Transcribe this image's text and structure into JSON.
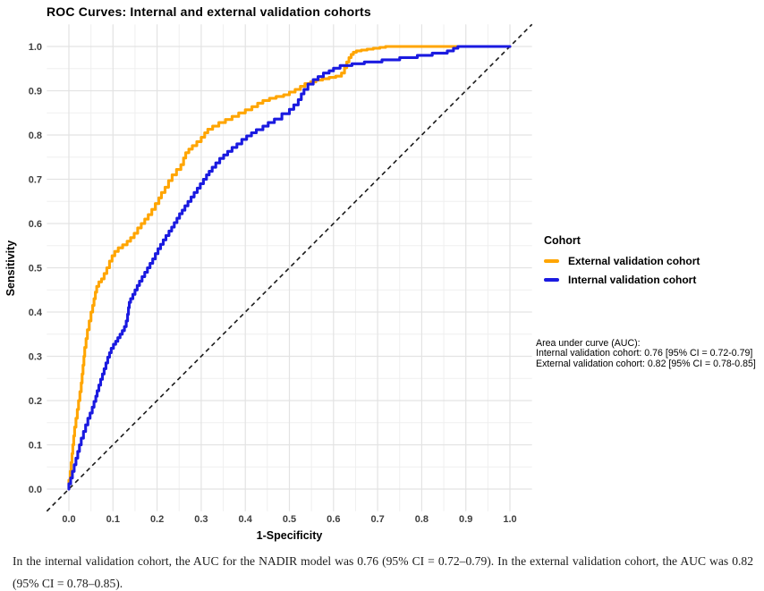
{
  "title": "ROC Curves: Internal and external validation cohorts",
  "legend": {
    "title": "Cohort",
    "items": [
      {
        "label": "External validation cohort",
        "color": "#FFA500"
      },
      {
        "label": "Internal validation cohort",
        "color": "#1A1AE0"
      }
    ]
  },
  "annotation": {
    "lines": [
      "Area under curve (AUC):",
      "Internal validation cohort: 0.76 [95% CI = 0.72-0.79]",
      "External validation cohort: 0.82 [95% CI = 0.78-0.85]"
    ]
  },
  "caption": {
    "text": "In the internal validation cohort, the AUC for the NADIR model was 0.76 (95% CI = 0.72–0.79). In the external validation cohort, the AUC was 0.82 (95% CI = 0.78–0.85)."
  },
  "chart_data": {
    "type": "line",
    "subtype": "roc-step-curves",
    "title": "ROC Curves: Internal and external validation cohorts",
    "xlabel": "1-Specificity",
    "ylabel": "Sensitivity",
    "xlim": [
      -0.05,
      1.05
    ],
    "ylim": [
      -0.05,
      1.05
    ],
    "x_ticks": [
      0.0,
      0.1,
      0.2,
      0.3,
      0.4,
      0.5,
      0.6,
      0.7,
      0.8,
      0.9,
      1.0
    ],
    "y_ticks": [
      0.0,
      0.1,
      0.2,
      0.3,
      0.4,
      0.5,
      0.6,
      0.7,
      0.8,
      0.9,
      1.0
    ],
    "grid": true,
    "grid_major_color": "#E3E3E3",
    "grid_minor_color": "#EFEFEF",
    "legend_position": "right",
    "legend_title": "Cohort",
    "reference_line": {
      "from": [
        0,
        0
      ],
      "to": [
        1,
        1
      ],
      "style": "dashed",
      "color": "#1A1A1A"
    },
    "series": [
      {
        "name": "External validation cohort",
        "color": "#FFA500",
        "auc": "0.82 [95% CI = 0.78-0.85]",
        "points": [
          [
            0.0,
            0.0
          ],
          [
            0.003,
            0.02
          ],
          [
            0.005,
            0.04
          ],
          [
            0.007,
            0.06
          ],
          [
            0.009,
            0.08
          ],
          [
            0.011,
            0.1
          ],
          [
            0.013,
            0.12
          ],
          [
            0.016,
            0.14
          ],
          [
            0.019,
            0.16
          ],
          [
            0.022,
            0.18
          ],
          [
            0.025,
            0.2
          ],
          [
            0.028,
            0.22
          ],
          [
            0.03,
            0.24
          ],
          [
            0.032,
            0.26
          ],
          [
            0.034,
            0.28
          ],
          [
            0.036,
            0.3
          ],
          [
            0.039,
            0.32
          ],
          [
            0.042,
            0.34
          ],
          [
            0.046,
            0.36
          ],
          [
            0.05,
            0.38
          ],
          [
            0.054,
            0.4
          ],
          [
            0.057,
            0.415
          ],
          [
            0.06,
            0.43
          ],
          [
            0.063,
            0.445
          ],
          [
            0.068,
            0.458
          ],
          [
            0.074,
            0.468
          ],
          [
            0.08,
            0.475
          ],
          [
            0.086,
            0.487
          ],
          [
            0.092,
            0.5
          ],
          [
            0.098,
            0.515
          ],
          [
            0.104,
            0.527
          ],
          [
            0.112,
            0.537
          ],
          [
            0.122,
            0.545
          ],
          [
            0.132,
            0.552
          ],
          [
            0.14,
            0.56
          ],
          [
            0.148,
            0.568
          ],
          [
            0.156,
            0.578
          ],
          [
            0.164,
            0.59
          ],
          [
            0.172,
            0.6
          ],
          [
            0.18,
            0.61
          ],
          [
            0.188,
            0.62
          ],
          [
            0.196,
            0.632
          ],
          [
            0.204,
            0.645
          ],
          [
            0.21,
            0.658
          ],
          [
            0.218,
            0.67
          ],
          [
            0.226,
            0.682
          ],
          [
            0.234,
            0.697
          ],
          [
            0.244,
            0.71
          ],
          [
            0.254,
            0.722
          ],
          [
            0.26,
            0.733
          ],
          [
            0.265,
            0.748
          ],
          [
            0.272,
            0.76
          ],
          [
            0.28,
            0.768
          ],
          [
            0.29,
            0.776
          ],
          [
            0.3,
            0.785
          ],
          [
            0.308,
            0.795
          ],
          [
            0.315,
            0.805
          ],
          [
            0.326,
            0.813
          ],
          [
            0.34,
            0.82
          ],
          [
            0.355,
            0.828
          ],
          [
            0.37,
            0.835
          ],
          [
            0.385,
            0.842
          ],
          [
            0.4,
            0.85
          ],
          [
            0.415,
            0.857
          ],
          [
            0.428,
            0.864
          ],
          [
            0.44,
            0.872
          ],
          [
            0.455,
            0.878
          ],
          [
            0.47,
            0.883
          ],
          [
            0.487,
            0.887
          ],
          [
            0.5,
            0.891
          ],
          [
            0.513,
            0.897
          ],
          [
            0.525,
            0.903
          ],
          [
            0.535,
            0.91
          ],
          [
            0.548,
            0.916
          ],
          [
            0.56,
            0.92
          ],
          [
            0.575,
            0.924
          ],
          [
            0.59,
            0.927
          ],
          [
            0.605,
            0.93
          ],
          [
            0.618,
            0.933
          ],
          [
            0.625,
            0.94
          ],
          [
            0.63,
            0.952
          ],
          [
            0.635,
            0.965
          ],
          [
            0.64,
            0.975
          ],
          [
            0.645,
            0.982
          ],
          [
            0.652,
            0.987
          ],
          [
            0.663,
            0.99
          ],
          [
            0.676,
            0.992
          ],
          [
            0.69,
            0.994
          ],
          [
            0.705,
            0.996
          ],
          [
            0.718,
            0.998
          ],
          [
            0.728,
            1.0
          ],
          [
            1.0,
            1.0
          ]
        ]
      },
      {
        "name": "Internal validation cohort",
        "color": "#1A1AE0",
        "auc": "0.76 [95% CI = 0.72-0.79]",
        "points": [
          [
            0.0,
            0.0
          ],
          [
            0.004,
            0.012
          ],
          [
            0.008,
            0.025
          ],
          [
            0.012,
            0.04
          ],
          [
            0.016,
            0.055
          ],
          [
            0.02,
            0.07
          ],
          [
            0.024,
            0.085
          ],
          [
            0.028,
            0.1
          ],
          [
            0.033,
            0.115
          ],
          [
            0.038,
            0.13
          ],
          [
            0.043,
            0.145
          ],
          [
            0.048,
            0.16
          ],
          [
            0.053,
            0.172
          ],
          [
            0.057,
            0.185
          ],
          [
            0.061,
            0.198
          ],
          [
            0.064,
            0.21
          ],
          [
            0.068,
            0.222
          ],
          [
            0.072,
            0.235
          ],
          [
            0.076,
            0.248
          ],
          [
            0.08,
            0.26
          ],
          [
            0.084,
            0.272
          ],
          [
            0.088,
            0.285
          ],
          [
            0.092,
            0.298
          ],
          [
            0.096,
            0.308
          ],
          [
            0.101,
            0.318
          ],
          [
            0.106,
            0.327
          ],
          [
            0.111,
            0.334
          ],
          [
            0.116,
            0.342
          ],
          [
            0.121,
            0.35
          ],
          [
            0.126,
            0.358
          ],
          [
            0.13,
            0.367
          ],
          [
            0.133,
            0.38
          ],
          [
            0.135,
            0.395
          ],
          [
            0.137,
            0.41
          ],
          [
            0.14,
            0.422
          ],
          [
            0.145,
            0.43
          ],
          [
            0.15,
            0.44
          ],
          [
            0.155,
            0.45
          ],
          [
            0.16,
            0.46
          ],
          [
            0.166,
            0.47
          ],
          [
            0.172,
            0.48
          ],
          [
            0.178,
            0.49
          ],
          [
            0.184,
            0.5
          ],
          [
            0.19,
            0.51
          ],
          [
            0.196,
            0.52
          ],
          [
            0.202,
            0.532
          ],
          [
            0.208,
            0.543
          ],
          [
            0.214,
            0.553
          ],
          [
            0.22,
            0.563
          ],
          [
            0.227,
            0.573
          ],
          [
            0.233,
            0.583
          ],
          [
            0.239,
            0.592
          ],
          [
            0.245,
            0.602
          ],
          [
            0.251,
            0.612
          ],
          [
            0.257,
            0.622
          ],
          [
            0.263,
            0.63
          ],
          [
            0.27,
            0.64
          ],
          [
            0.277,
            0.65
          ],
          [
            0.284,
            0.66
          ],
          [
            0.291,
            0.67
          ],
          [
            0.298,
            0.68
          ],
          [
            0.305,
            0.69
          ],
          [
            0.312,
            0.7
          ],
          [
            0.318,
            0.71
          ],
          [
            0.325,
            0.718
          ],
          [
            0.333,
            0.727
          ],
          [
            0.342,
            0.737
          ],
          [
            0.351,
            0.747
          ],
          [
            0.36,
            0.755
          ],
          [
            0.37,
            0.763
          ],
          [
            0.381,
            0.772
          ],
          [
            0.392,
            0.78
          ],
          [
            0.403,
            0.79
          ],
          [
            0.414,
            0.798
          ],
          [
            0.425,
            0.805
          ],
          [
            0.44,
            0.812
          ],
          [
            0.452,
            0.82
          ],
          [
            0.466,
            0.828
          ],
          [
            0.483,
            0.836
          ],
          [
            0.5,
            0.848
          ],
          [
            0.51,
            0.858
          ],
          [
            0.52,
            0.868
          ],
          [
            0.527,
            0.88
          ],
          [
            0.533,
            0.893
          ],
          [
            0.542,
            0.903
          ],
          [
            0.554,
            0.915
          ],
          [
            0.565,
            0.925
          ],
          [
            0.577,
            0.932
          ],
          [
            0.59,
            0.94
          ],
          [
            0.6,
            0.945
          ],
          [
            0.615,
            0.951
          ],
          [
            0.642,
            0.957
          ],
          [
            0.67,
            0.961
          ],
          [
            0.71,
            0.965
          ],
          [
            0.75,
            0.97
          ],
          [
            0.79,
            0.975
          ],
          [
            0.824,
            0.98
          ],
          [
            0.858,
            0.985
          ],
          [
            0.872,
            0.99
          ],
          [
            0.882,
            0.996
          ],
          [
            0.889,
            1.0
          ],
          [
            1.0,
            1.0
          ]
        ]
      }
    ]
  }
}
